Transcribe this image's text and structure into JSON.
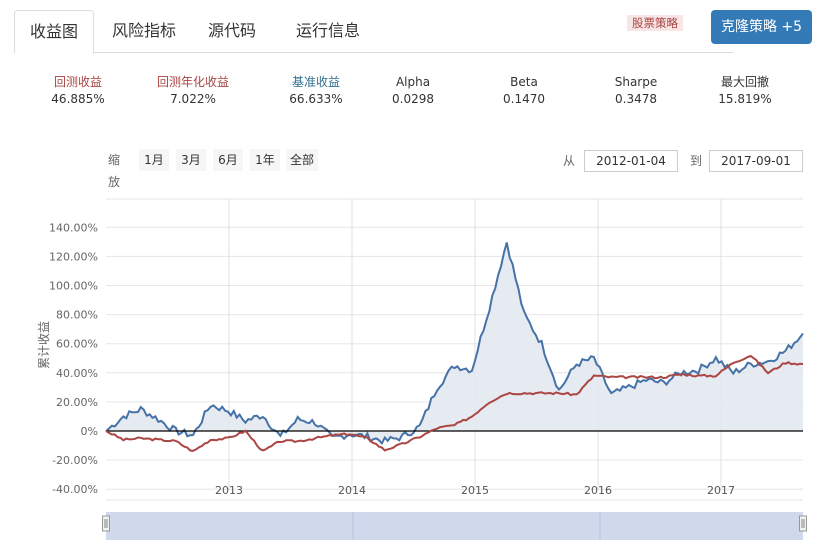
{
  "tabs": [
    {
      "label": "收益图",
      "active": true
    },
    {
      "label": "风险指标",
      "active": false
    },
    {
      "label": "源代码",
      "active": false
    },
    {
      "label": "运行信息",
      "active": false
    }
  ],
  "tag": "股票策略",
  "clone_button": "克隆策略 +5",
  "stats": [
    {
      "label": "回测收益",
      "value": "46.885%",
      "color": "#a94442"
    },
    {
      "label": "回测年化收益",
      "value": "7.022%",
      "color": "#a94442"
    },
    {
      "label": "基准收益",
      "value": "66.633%",
      "color": "#31708f"
    },
    {
      "label": "Alpha",
      "value": "0.0298",
      "color": "#333333"
    },
    {
      "label": "Beta",
      "value": "0.1470",
      "color": "#333333"
    },
    {
      "label": "Sharpe",
      "value": "0.3478",
      "color": "#333333"
    },
    {
      "label": "最大回撤",
      "value": "15.819%",
      "color": "#333333"
    }
  ],
  "zoom": {
    "label": "缩放",
    "buttons": [
      "1月",
      "3月",
      "6月",
      "1年",
      "全部"
    ]
  },
  "range": {
    "from_label": "从",
    "from_value": "2012-01-04",
    "to_label": "到",
    "to_value": "2017-09-01"
  },
  "colors": {
    "strategy": "#aa4643",
    "benchmark": "#4572a7",
    "benchmark_fill": "#e3e8f0",
    "navigator": "#d0d9eb"
  },
  "chart_data": {
    "type": "line",
    "title": "",
    "xlabel": "",
    "ylabel": "累计收益",
    "ylim": [
      -40,
      140
    ],
    "y_ticks": [
      "140.00%",
      "120.00%",
      "100.00%",
      "80.00%",
      "60.00%",
      "40.00%",
      "20.00%",
      "0%",
      "-20.00%",
      "-40.00%"
    ],
    "x_ticks": [
      "2013",
      "2014",
      "2015",
      "2016",
      "2017"
    ],
    "grid": true,
    "legend_position": "none",
    "x": [
      "2012-01",
      "2012-03",
      "2012-05",
      "2012-07",
      "2012-09",
      "2012-11",
      "2013-01",
      "2013-02",
      "2013-04",
      "2013-05",
      "2013-06",
      "2013-08",
      "2013-10",
      "2013-12",
      "2014-02",
      "2014-04",
      "2014-06",
      "2014-08",
      "2014-10",
      "2014-12",
      "2015-01",
      "2015-03",
      "2015-04",
      "2015-06",
      "2015-07",
      "2015-08",
      "2015-09",
      "2015-11",
      "2015-12",
      "2016-01",
      "2016-02",
      "2016-04",
      "2016-06",
      "2016-08",
      "2016-10",
      "2016-12",
      "2017-01",
      "2017-03",
      "2017-05",
      "2017-07",
      "2017-09"
    ],
    "series": [
      {
        "name": "基准收益",
        "color": "#4572a7",
        "values": [
          0,
          10,
          15,
          8,
          0,
          -3,
          18,
          14,
          7,
          11,
          -4,
          8,
          6,
          -5,
          -2,
          -4,
          -7,
          -4,
          3,
          30,
          45,
          42,
          85,
          130,
          80,
          60,
          28,
          46,
          50,
          25,
          30,
          35,
          33,
          40,
          42,
          50,
          40,
          46,
          48,
          55,
          67
        ]
      },
      {
        "name": "回测收益",
        "color": "#aa4643",
        "values": [
          0,
          -6,
          -5,
          -6,
          -7,
          -14,
          -6,
          -5,
          0,
          -14,
          -7,
          -7,
          -5,
          -3,
          -2,
          -5,
          -13,
          -9,
          -4,
          2,
          4,
          10,
          20,
          26,
          26,
          26,
          26,
          25,
          38,
          37,
          37,
          37,
          37,
          39,
          38,
          38,
          47,
          52,
          40,
          47,
          46
        ]
      }
    ]
  }
}
